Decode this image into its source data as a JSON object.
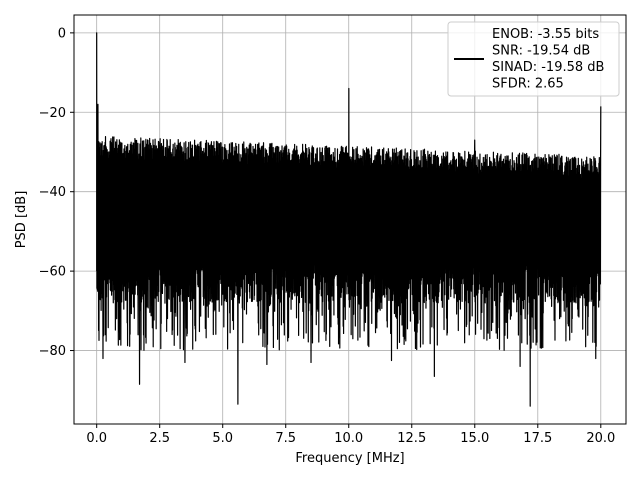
{
  "chart_data": {
    "type": "line",
    "title": "",
    "xlabel": "Frequency [MHz]",
    "ylabel": "PSD [dB]",
    "xlim": [
      -0.9,
      21.0
    ],
    "ylim": [
      -98.5,
      4.5
    ],
    "xticks": [
      0.0,
      2.5,
      5.0,
      7.5,
      10.0,
      12.5,
      15.0,
      17.5,
      20.0
    ],
    "xtick_labels": [
      "0.0",
      "2.5",
      "5.0",
      "7.5",
      "10.0",
      "12.5",
      "15.0",
      "17.5",
      "20.0"
    ],
    "yticks": [
      0,
      -20,
      -40,
      -60,
      -80
    ],
    "ytick_labels": [
      "0",
      "−20",
      "−40",
      "−60",
      "−80"
    ],
    "grid": true,
    "legend_position": "top-right",
    "line_color": "#000000",
    "series": [
      {
        "name": "",
        "noise_floor_top_start": -25,
        "noise_floor_top_end": -30,
        "noise_floor_bottom_typical": -68,
        "noise_floor_bottom_deep": -80,
        "spikes": [
          {
            "x": 0.0,
            "y": 0.0
          },
          {
            "x": 0.05,
            "y": -18
          },
          {
            "x": 10.0,
            "y": -14
          },
          {
            "x": 15.0,
            "y": -27
          },
          {
            "x": 20.0,
            "y": -18.5
          }
        ],
        "dips": [
          {
            "x": 0.25,
            "y": -82
          },
          {
            "x": 1.7,
            "y": -88.5
          },
          {
            "x": 3.5,
            "y": -83
          },
          {
            "x": 5.6,
            "y": -93.5
          },
          {
            "x": 6.75,
            "y": -83.5
          },
          {
            "x": 8.5,
            "y": -83
          },
          {
            "x": 10.8,
            "y": -79
          },
          {
            "x": 11.7,
            "y": -82.5
          },
          {
            "x": 13.4,
            "y": -86.5
          },
          {
            "x": 15.0,
            "y": -88
          },
          {
            "x": 16.8,
            "y": -84
          },
          {
            "x": 17.2,
            "y": -94
          },
          {
            "x": 19.8,
            "y": -82
          }
        ]
      }
    ],
    "legend_lines": [
      "ENOB: -3.55 bits",
      "SNR: -19.54 dB",
      "SINAD: -19.58 dB",
      "SFDR: 2.65"
    ]
  }
}
